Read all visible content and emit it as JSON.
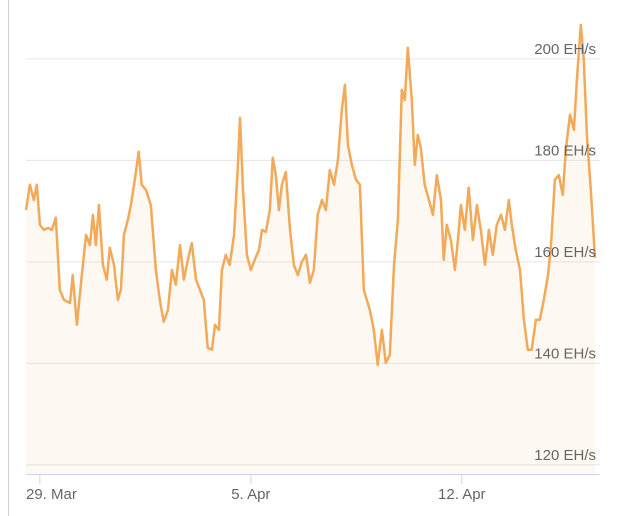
{
  "chart_data": {
    "type": "area",
    "x": [
      -0.46,
      -0.33,
      -0.2,
      -0.1,
      0,
      0.13,
      0.27,
      0.4,
      0.53,
      0.66,
      0.8,
      1,
      1.09,
      1.23,
      1.39,
      1.53,
      1.66,
      1.76,
      1.86,
      1.96,
      2.09,
      2.22,
      2.32,
      2.46,
      2.59,
      2.69,
      2.79,
      2.92,
      3.02,
      3.15,
      3.28,
      3.38,
      3.52,
      3.68,
      3.85,
      3.98,
      4.11,
      4.25,
      4.38,
      4.51,
      4.65,
      4.78,
      4.91,
      5.04,
      5.18,
      5.31,
      5.44,
      5.57,
      5.71,
      5.81,
      5.94,
      6.04,
      6.17,
      6.3,
      6.44,
      6.57,
      6.64,
      6.74,
      6.87,
      7,
      7.13,
      7.27,
      7.37,
      7.5,
      7.63,
      7.73,
      7.83,
      7.93,
      8.03,
      8.16,
      8.3,
      8.43,
      8.56,
      8.69,
      8.83,
      8.96,
      9.09,
      9.22,
      9.36,
      9.49,
      9.62,
      9.76,
      9.89,
      10.02,
      10.12,
      10.22,
      10.35,
      10.49,
      10.62,
      10.75,
      10.95,
      11.08,
      11.21,
      11.35,
      11.48,
      11.61,
      11.75,
      11.88,
      12.01,
      12.11,
      12.21,
      12.34,
      12.44,
      12.54,
      12.64,
      12.77,
      12.91,
      13.04,
      13.17,
      13.31,
      13.4,
      13.5,
      13.64,
      13.77,
      13.87,
      13.97,
      14.1,
      14.23,
      14.37,
      14.5,
      14.63,
      14.77,
      14.9,
      15.03,
      15.16,
      15.3,
      15.43,
      15.56,
      15.66,
      15.79,
      15.93,
      16.06,
      16.19,
      16.32,
      16.46,
      16.59,
      16.72,
      16.86,
      16.96,
      17.09,
      17.22,
      17.35,
      17.45,
      17.59,
      17.72,
      17.82,
      17.95,
      18.05,
      18.15,
      18.28,
      18.42
    ],
    "values": [
      170.2,
      175.2,
      172.2,
      175.2,
      167.3,
      166.3,
      166.7,
      166.3,
      168.7,
      154.5,
      152.5,
      151.9,
      157.4,
      147.6,
      157.4,
      165.3,
      163.3,
      169.3,
      163.3,
      171.2,
      159.4,
      156.5,
      162.8,
      159.4,
      152.5,
      154.5,
      165.3,
      168.3,
      171.2,
      176.2,
      181.7,
      175.2,
      174.2,
      171.2,
      158.4,
      152.5,
      148.2,
      150.5,
      158.4,
      155.5,
      163.3,
      156.5,
      160.4,
      163.7,
      156.5,
      154.5,
      152.5,
      143.1,
      142.7,
      147.6,
      146.6,
      158.4,
      161.4,
      159.4,
      165.3,
      179.1,
      188.4,
      174.2,
      161.4,
      158.4,
      160.4,
      162.4,
      166.3,
      165.9,
      170.2,
      180.5,
      177.1,
      170.2,
      175.2,
      177.7,
      166.3,
      159.4,
      157.4,
      160.0,
      161.4,
      155.9,
      158.4,
      169.3,
      172.2,
      170.2,
      178.1,
      175.2,
      180.1,
      189.9,
      194.9,
      183.1,
      179.1,
      176.2,
      175.2,
      154.5,
      150.5,
      146.6,
      139.7,
      146.6,
      140.1,
      141.7,
      159.4,
      168.3,
      193.9,
      191.9,
      202.2,
      191.9,
      179.1,
      185.0,
      182.5,
      175.2,
      172.2,
      169.3,
      177.1,
      172.2,
      160.4,
      167.3,
      164.3,
      158.4,
      164.3,
      171.2,
      166.3,
      174.6,
      164.3,
      171.2,
      166.3,
      159.4,
      166.3,
      161.4,
      167.3,
      169.3,
      166.3,
      172.2,
      167.3,
      162.4,
      158.4,
      148.6,
      142.7,
      142.7,
      148.6,
      148.6,
      152.5,
      157.4,
      163.3,
      176.2,
      177.1,
      173.2,
      182.1,
      189.0,
      186.0,
      195.9,
      206.7,
      199.8,
      185.0,
      174.2,
      160.8
    ],
    "color": "#f2a958",
    "xlim": [
      -0.46,
      18.42
    ],
    "xticks": [
      {
        "value": 0,
        "label": "29. Mar"
      },
      {
        "value": 7,
        "label": "5. Apr"
      },
      {
        "value": 14,
        "label": "12. Apr"
      }
    ],
    "ylim": [
      118.2,
      211.6
    ],
    "yticks": [
      {
        "value": 120,
        "label": "120 EH/s"
      },
      {
        "value": 140,
        "label": "140 EH/s"
      },
      {
        "value": 160,
        "label": "160 EH/s"
      },
      {
        "value": 180,
        "label": "180 EH/s"
      },
      {
        "value": 200,
        "label": "200 EH/s"
      }
    ],
    "grid": true
  }
}
